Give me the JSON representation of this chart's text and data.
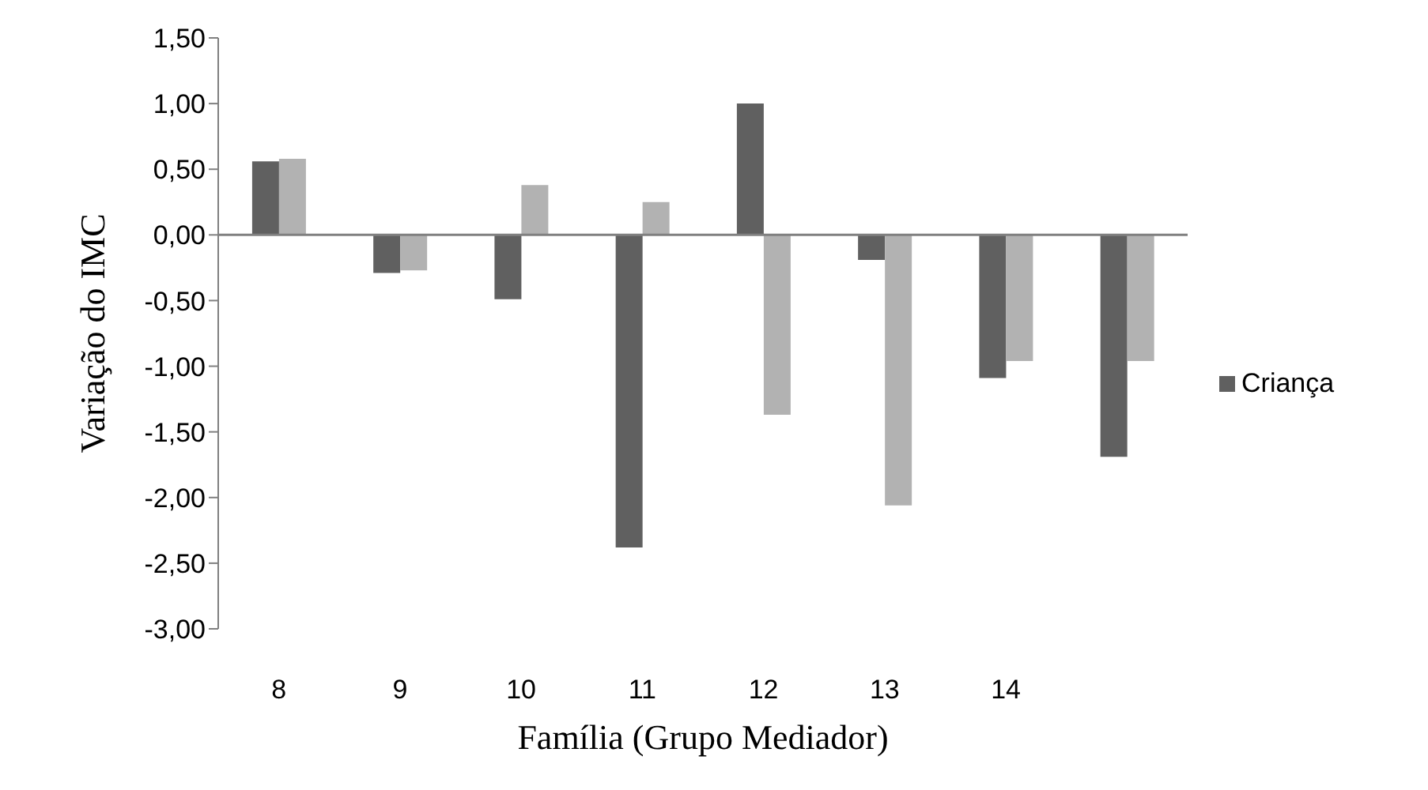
{
  "chart_data": {
    "type": "bar",
    "xlabel": "Família (Grupo Mediador)",
    "ylabel": "Variação do IMC",
    "categories": [
      "8",
      "9",
      "10",
      "11",
      "12",
      "13",
      "14",
      null
    ],
    "series": [
      {
        "name": "Criança",
        "color": "#606060",
        "values": [
          0.56,
          -0.29,
          -0.49,
          -2.38,
          1.0,
          -0.19,
          -1.09,
          -1.69
        ]
      },
      {
        "color": "#b2b2b2",
        "values": [
          0.58,
          -0.27,
          0.38,
          0.25,
          -1.37,
          -2.06,
          -0.96,
          -0.96
        ]
      }
    ],
    "ylim": [
      -3,
      1.5
    ],
    "yticks": [
      {
        "value": -3,
        "label": "-3,00"
      },
      {
        "value": -2.5,
        "label": "-2,50"
      },
      {
        "value": -2,
        "label": "-2,00"
      },
      {
        "value": -1.5,
        "label": "-1,50"
      },
      {
        "value": -1,
        "label": "-1,00"
      },
      {
        "value": -0.5,
        "label": "-0,50"
      },
      {
        "value": 0,
        "label": "0,00"
      },
      {
        "value": 0.5,
        "label": "0,50"
      },
      {
        "value": 1,
        "label": "1,00"
      },
      {
        "value": 1.5,
        "label": "1,50"
      }
    ],
    "legend": "right"
  }
}
